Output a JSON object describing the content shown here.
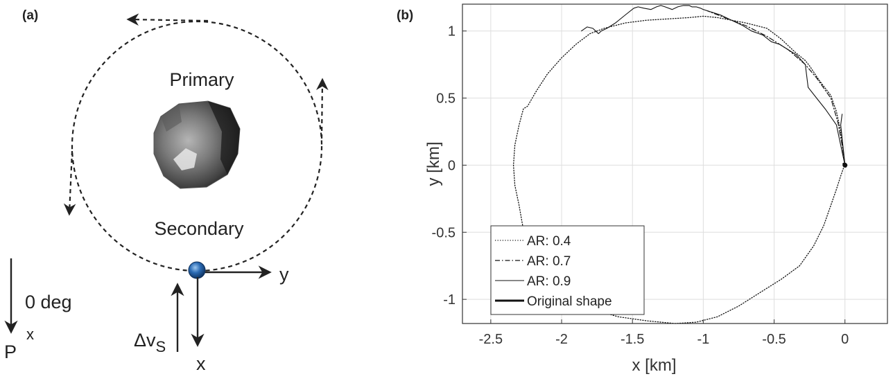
{
  "panel_a": {
    "tag": "(a)",
    "primary_label": "Primary",
    "secondary_label": "Secondary",
    "axis_y_label": "y",
    "axis_x_label": "x",
    "deg_label": "0 deg",
    "p_label": "P",
    "p_x_label": "x",
    "dv_label": "Δv",
    "dv_sub": "S",
    "colors": {
      "primary_body": "#6b6b6b",
      "secondary_body": "#1f5fa8",
      "line": "#222222"
    }
  },
  "panel_b": {
    "tag": "(b)"
  },
  "chart_data": {
    "type": "line",
    "xlabel": "x [km]",
    "ylabel": "y [km]",
    "xlim": [
      -2.7,
      0.3
    ],
    "ylim": [
      -1.18,
      1.2
    ],
    "xticks": [
      -2.5,
      -2,
      -1.5,
      -1,
      -0.5,
      0
    ],
    "xtick_labels": [
      "-2.5",
      "-2",
      "-1.5",
      "-1",
      "-0.5",
      "0"
    ],
    "yticks": [
      -1,
      -0.5,
      0,
      0.5,
      1
    ],
    "ytick_labels": [
      "-1",
      "-0.5",
      "0",
      "0.5",
      "1"
    ],
    "grid": true,
    "legend_position": "bottom-left",
    "series": [
      {
        "name": "AR: 0.4",
        "style": "dotted",
        "x": [
          0,
          -0.03,
          -0.06,
          -0.1,
          -0.18,
          -0.25,
          -0.28,
          -0.35,
          -0.45,
          -0.5,
          -0.55,
          -0.7,
          -0.8,
          -0.9,
          -1.0,
          -1.1,
          -1.25,
          -1.4,
          -1.55,
          -1.7,
          -1.8,
          -1.9,
          -2.0,
          -2.1,
          -2.18,
          -2.24,
          -2.27,
          -2.3,
          -2.33,
          -2.34,
          -2.33,
          -2.3,
          -2.28,
          -2.27,
          -2.24,
          -2.2,
          -2.1,
          -1.95,
          -1.8,
          -1.6,
          -1.4,
          -1.2,
          -1.05,
          -0.9,
          -0.75,
          -0.6,
          -0.45,
          -0.32,
          -0.22,
          -0.15,
          -0.1,
          -0.06,
          -0.03,
          -0.01,
          0
        ],
        "y": [
          0,
          0.25,
          0.4,
          0.52,
          0.63,
          0.74,
          0.78,
          0.84,
          0.94,
          0.98,
          1.02,
          1.06,
          1.08,
          1.1,
          1.11,
          1.1,
          1.09,
          1.08,
          1.06,
          1.02,
          0.98,
          0.9,
          0.8,
          0.68,
          0.55,
          0.44,
          0.42,
          0.3,
          0.15,
          0.0,
          -0.15,
          -0.3,
          -0.42,
          -0.48,
          -0.6,
          -0.7,
          -0.85,
          -0.98,
          -1.07,
          -1.13,
          -1.16,
          -1.18,
          -1.17,
          -1.13,
          -1.05,
          -0.95,
          -0.85,
          -0.75,
          -0.6,
          -0.45,
          -0.3,
          -0.18,
          -0.08,
          -0.02,
          0
        ]
      },
      {
        "name": "AR: 0.7",
        "style": "dashdot",
        "x": [
          0,
          -0.02,
          -0.05,
          -0.1,
          -0.2,
          -0.28,
          -0.4,
          -0.55,
          -0.7,
          -0.85,
          -0.97
        ],
        "y": [
          0,
          0.15,
          0.32,
          0.5,
          0.65,
          0.75,
          0.86,
          0.96,
          1.04,
          1.1,
          1.15
        ]
      },
      {
        "name": "AR: 0.9",
        "style": "solid",
        "x": [
          -0.02,
          -0.03,
          0,
          -0.04,
          -0.06,
          -0.1,
          -0.14,
          -0.2,
          -0.26,
          -0.28,
          -0.34,
          -0.4,
          -0.46,
          -0.52,
          -0.58,
          -0.66,
          -0.72,
          -0.8,
          -0.88,
          -0.97,
          -1.0,
          -1.02,
          -1.05,
          -1.08,
          -1.1,
          -1.14,
          -1.18,
          -1.22,
          -1.27,
          -1.3,
          -1.33,
          -1.37,
          -1.42,
          -1.46,
          -1.49,
          -1.55,
          -1.62,
          -1.68,
          -1.72,
          -1.74,
          -1.76,
          -1.78,
          -1.82,
          -1.86
        ],
        "y": [
          0.38,
          0.3,
          0.0,
          0.2,
          0.3,
          0.36,
          0.42,
          0.5,
          0.58,
          0.75,
          0.82,
          0.86,
          0.9,
          0.92,
          0.97,
          1.0,
          1.04,
          1.08,
          1.12,
          1.15,
          1.16,
          1.17,
          1.18,
          1.18,
          1.19,
          1.19,
          1.18,
          1.16,
          1.18,
          1.19,
          1.18,
          1.16,
          1.17,
          1.18,
          1.17,
          1.12,
          1.06,
          1.02,
          1.0,
          0.98,
          1.0,
          1.02,
          1.03,
          1.0
        ]
      },
      {
        "name": "Original shape",
        "style": "bold",
        "x": [
          -0.01,
          0.01,
          0.005,
          -0.005
        ],
        "y": [
          0.01,
          0.0,
          -0.01,
          0.0
        ]
      }
    ]
  }
}
